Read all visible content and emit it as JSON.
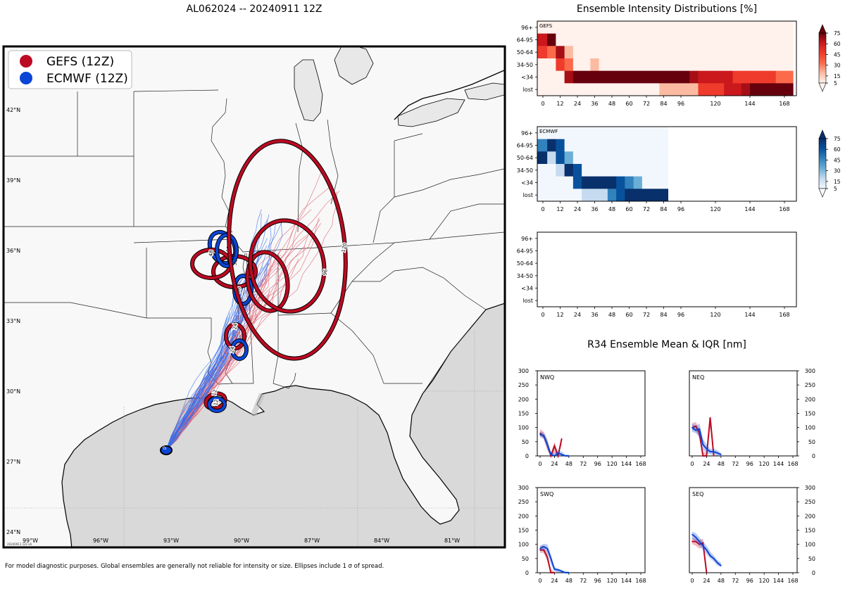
{
  "figure": {
    "map_title": "AL062024 -- 20240911 12Z",
    "intensity_title": "Ensemble Intensity Distributions [%]",
    "r34_title": "R34 Ensemble Mean & IQR [nm]",
    "footer": "For model diagnostic purposes. Global ensembles are generally not reliable for intensity or size. Ellipses include 1 σ of spread.",
    "stamp": "20240911 12z v6"
  },
  "colors": {
    "gefs": "#bd0a22",
    "ecmwf": "#0b45d6",
    "gefs_track": "#e06070",
    "ecmwf_track": "#3a6fe8",
    "land": "#f8f8f8",
    "lake": "#e8e8e8"
  },
  "legend": [
    {
      "label": "GEFS (12Z)",
      "color_key": "gefs"
    },
    {
      "label": "ECMWF (12Z)",
      "color_key": "ecmwf"
    }
  ],
  "map": {
    "lat_labels": [
      "42°N",
      "39°N",
      "36°N",
      "33°N",
      "30°N",
      "27°N",
      "24°N"
    ],
    "lon_labels": [
      "99°W",
      "96°W",
      "93°W",
      "90°W",
      "87°W",
      "84°W",
      "81°W"
    ],
    "ellipses": [
      {
        "model": "gefs",
        "hour": "12"
      },
      {
        "model": "ecmwf",
        "hour": "12"
      },
      {
        "model": "gefs",
        "hour": "24"
      },
      {
        "model": "ecmwf",
        "hour": "24"
      },
      {
        "model": "gefs",
        "hour": "36"
      },
      {
        "model": "ecmwf",
        "hour": "48"
      },
      {
        "model": "gefs",
        "hour": "48"
      },
      {
        "model": "ecmwf",
        "hour": "96"
      },
      {
        "model": "ecmwf",
        "hour": "120"
      },
      {
        "model": "gefs",
        "hour": "72"
      },
      {
        "model": "gefs",
        "hour": "96"
      },
      {
        "model": "gefs",
        "hour": "120"
      }
    ],
    "start_label": "0"
  },
  "chart_data": [
    {
      "type": "heatmap",
      "panel": "GEFS",
      "title": "GEFS",
      "y_categories": [
        "96+",
        "64-95",
        "50-64",
        "34-50",
        "<34",
        "lost"
      ],
      "x_ticks": [
        0,
        12,
        24,
        36,
        48,
        60,
        72,
        84,
        96,
        120,
        144,
        168
      ],
      "x_hours": [
        0,
        6,
        12,
        18,
        24,
        30,
        36,
        42,
        48,
        54,
        60,
        66,
        72,
        78,
        84,
        90,
        96,
        102,
        108,
        114,
        120,
        126,
        132,
        138,
        144,
        150,
        156,
        162,
        168
      ],
      "values": [
        [
          0,
          0,
          0,
          0,
          0,
          0,
          0,
          0,
          0,
          0,
          0,
          0,
          0,
          0,
          0,
          0,
          0,
          0,
          0,
          0,
          0,
          0,
          0,
          0,
          0,
          0,
          0,
          0,
          0
        ],
        [
          45,
          75,
          0,
          0,
          0,
          0,
          0,
          0,
          0,
          0,
          0,
          0,
          0,
          0,
          0,
          0,
          0,
          0,
          0,
          0,
          0,
          0,
          0,
          0,
          0,
          0,
          0,
          0,
          0
        ],
        [
          40,
          20,
          65,
          5,
          0,
          0,
          0,
          0,
          0,
          0,
          0,
          0,
          0,
          0,
          0,
          0,
          0,
          0,
          0,
          0,
          0,
          0,
          0,
          0,
          0,
          0,
          0,
          0,
          0
        ],
        [
          0,
          0,
          35,
          25,
          0,
          0,
          8,
          0,
          0,
          0,
          0,
          0,
          0,
          0,
          0,
          0,
          0,
          0,
          0,
          0,
          0,
          0,
          0,
          0,
          0,
          0,
          0,
          0,
          0
        ],
        [
          0,
          0,
          0,
          70,
          95,
          95,
          95,
          95,
          95,
          95,
          95,
          95,
          95,
          95,
          95,
          95,
          95,
          75,
          70,
          55,
          55,
          55,
          50,
          30,
          30,
          30,
          30,
          30,
          15
        ],
        [
          0,
          0,
          0,
          0,
          0,
          0,
          0,
          0,
          0,
          0,
          0,
          0,
          0,
          0,
          8,
          8,
          8,
          8,
          12,
          35,
          35,
          35,
          50,
          50,
          70,
          75,
          75,
          80,
          85
        ]
      ],
      "colorbar_ticks": [
        5,
        15,
        30,
        45,
        60,
        75
      ],
      "cmap": "reds"
    },
    {
      "type": "heatmap",
      "panel": "ECMWF",
      "title": "ECMWF",
      "y_categories": [
        "96+",
        "64-95",
        "50-64",
        "34-50",
        "<34",
        "lost"
      ],
      "x_ticks": [
        0,
        12,
        24,
        36,
        48,
        60,
        72,
        84,
        96,
        120,
        144,
        168
      ],
      "x_hours": [
        0,
        6,
        12,
        18,
        24,
        30,
        36,
        42,
        48,
        54,
        60,
        66,
        72,
        78,
        84
      ],
      "values": [
        [
          0,
          0,
          0,
          0,
          0,
          0,
          0,
          0,
          0,
          0,
          0,
          0,
          0,
          0,
          0
        ],
        [
          40,
          90,
          45,
          0,
          0,
          0,
          0,
          0,
          0,
          0,
          0,
          0,
          0,
          0,
          0
        ],
        [
          60,
          10,
          45,
          20,
          0,
          0,
          0,
          0,
          0,
          0,
          0,
          0,
          0,
          0,
          0
        ],
        [
          0,
          0,
          10,
          80,
          45,
          0,
          0,
          0,
          0,
          0,
          0,
          0,
          0,
          0,
          0
        ],
        [
          0,
          0,
          0,
          0,
          55,
          90,
          90,
          90,
          70,
          50,
          40,
          25,
          0,
          0,
          0
        ],
        [
          0,
          0,
          0,
          0,
          0,
          10,
          10,
          10,
          30,
          50,
          60,
          75,
          95,
          95,
          95
        ]
      ],
      "colorbar_ticks": [
        5,
        15,
        30,
        45,
        60,
        75
      ],
      "cmap": "blues"
    },
    {
      "type": "heatmap",
      "panel": "empty",
      "title": "",
      "y_categories": [
        "96+",
        "64-95",
        "50-64",
        "34-50",
        "<34",
        "lost"
      ],
      "x_ticks": [
        0,
        12,
        24,
        36,
        48,
        60,
        72,
        84,
        96,
        120,
        144,
        168
      ],
      "x_hours": [],
      "values": []
    },
    {
      "type": "line",
      "panel": "NWQ",
      "title": "NWQ",
      "ylim": [
        0,
        300
      ],
      "y_ticks": [
        0,
        50,
        100,
        150,
        200,
        250,
        300
      ],
      "x_ticks": [
        0,
        24,
        48,
        72,
        96,
        120,
        144,
        168
      ],
      "series": [
        {
          "name": "GEFS",
          "x": [
            0,
            6,
            12,
            18,
            24,
            30,
            36
          ],
          "values": [
            80,
            70,
            40,
            0,
            35,
            0,
            60
          ],
          "iqr_low": [
            70,
            60,
            20,
            0,
            10,
            0,
            40
          ],
          "iqr_high": [
            95,
            85,
            60,
            10,
            50,
            10,
            70
          ]
        },
        {
          "name": "ECMWF",
          "x": [
            0,
            6,
            12,
            18,
            24,
            30,
            36,
            42,
            48
          ],
          "values": [
            75,
            72,
            40,
            5,
            0,
            10,
            5,
            0,
            0
          ],
          "iqr_low": [
            65,
            62,
            25,
            0,
            0,
            0,
            0,
            0,
            0
          ],
          "iqr_high": [
            85,
            82,
            55,
            15,
            10,
            20,
            15,
            5,
            5
          ]
        }
      ]
    },
    {
      "type": "line",
      "panel": "NEQ",
      "title": "NEQ",
      "ylim": [
        0,
        300
      ],
      "y_ticks": [
        0,
        50,
        100,
        150,
        200,
        250,
        300
      ],
      "x_ticks": [
        0,
        24,
        48,
        72,
        96,
        120,
        144,
        168
      ],
      "series": [
        {
          "name": "GEFS",
          "x": [
            0,
            6,
            12,
            18,
            24,
            30,
            36
          ],
          "values": [
            100,
            105,
            80,
            0,
            0,
            135,
            0
          ],
          "iqr_low": [
            90,
            90,
            60,
            0,
            0,
            100,
            0
          ],
          "iqr_high": [
            115,
            120,
            95,
            15,
            10,
            140,
            10
          ]
        },
        {
          "name": "ECMWF",
          "x": [
            0,
            6,
            12,
            18,
            24,
            30,
            36,
            42,
            48
          ],
          "values": [
            100,
            90,
            95,
            40,
            25,
            15,
            15,
            10,
            5
          ],
          "iqr_low": [
            85,
            80,
            70,
            20,
            10,
            5,
            5,
            0,
            0
          ],
          "iqr_high": [
            115,
            105,
            115,
            60,
            40,
            25,
            25,
            20,
            10
          ]
        }
      ]
    },
    {
      "type": "line",
      "panel": "SWQ",
      "title": "SWQ",
      "ylim": [
        0,
        300
      ],
      "y_ticks": [
        0,
        50,
        100,
        150,
        200,
        250,
        300
      ],
      "x_ticks": [
        0,
        24,
        48,
        72,
        96,
        120,
        144,
        168
      ],
      "series": [
        {
          "name": "GEFS",
          "x": [
            0,
            6,
            12,
            18,
            24
          ],
          "values": [
            80,
            80,
            55,
            0,
            0
          ],
          "iqr_low": [
            70,
            70,
            40,
            0,
            0
          ],
          "iqr_high": [
            95,
            95,
            70,
            10,
            5
          ]
        },
        {
          "name": "ECMWF",
          "x": [
            0,
            6,
            12,
            18,
            24,
            30,
            36,
            42,
            48
          ],
          "values": [
            85,
            92,
            85,
            50,
            12,
            10,
            5,
            0,
            0
          ],
          "iqr_low": [
            75,
            82,
            70,
            30,
            5,
            0,
            0,
            0,
            0
          ],
          "iqr_high": [
            95,
            102,
            100,
            65,
            20,
            15,
            10,
            5,
            5
          ]
        }
      ]
    },
    {
      "type": "line",
      "panel": "SEQ",
      "title": "SEQ",
      "ylim": [
        0,
        300
      ],
      "y_ticks": [
        0,
        50,
        100,
        150,
        200,
        250,
        300
      ],
      "x_ticks": [
        0,
        24,
        48,
        72,
        96,
        120,
        144,
        168
      ],
      "series": [
        {
          "name": "GEFS",
          "x": [
            0,
            6,
            12,
            18,
            24
          ],
          "values": [
            110,
            110,
            100,
            105,
            0
          ],
          "iqr_low": [
            100,
            95,
            85,
            90,
            0
          ],
          "iqr_high": [
            125,
            120,
            115,
            120,
            10
          ]
        },
        {
          "name": "ECMWF",
          "x": [
            0,
            6,
            12,
            18,
            24,
            30,
            36,
            42,
            48
          ],
          "values": [
            135,
            125,
            110,
            95,
            80,
            60,
            50,
            35,
            25
          ],
          "iqr_low": [
            120,
            110,
            95,
            80,
            65,
            50,
            40,
            25,
            20
          ],
          "iqr_high": [
            145,
            140,
            125,
            110,
            95,
            75,
            60,
            45,
            35
          ]
        }
      ]
    }
  ]
}
